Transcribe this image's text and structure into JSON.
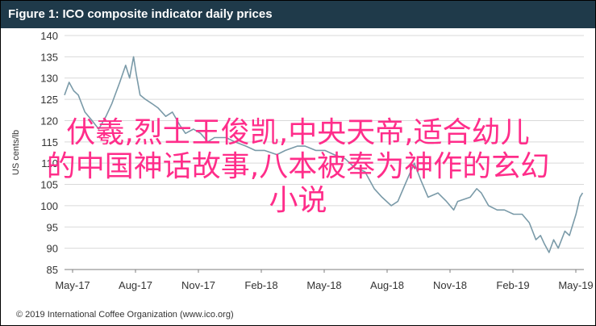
{
  "title": "Figure 1: ICO composite indicator daily prices",
  "footer": "© 2019 International Coffee Organization (www.ico.org)",
  "overlay_lines": [
    "伏羲,烈士王俊凯,中央天帝,适合幼儿",
    "的中国神话故事,八本被奉为神作的玄幻",
    "小说"
  ],
  "colors": {
    "title_bg": "#1f3a4a",
    "line": "#7a9aa8",
    "overlay": "#ff2d8a",
    "grid": "#d9d9d9"
  },
  "chart_data": {
    "type": "line",
    "title": "Figure 1: ICO composite indicator daily prices",
    "ylabel": "US cents/lb",
    "ylim": [
      85,
      140
    ],
    "yticks": [
      85,
      90,
      95,
      100,
      105,
      110,
      115,
      120,
      125,
      130,
      135,
      140
    ],
    "xlim": [
      "2017-05-01",
      "2019-06-30"
    ],
    "xticks": [
      "May-17",
      "Aug-17",
      "Nov-17",
      "Feb-18",
      "May-18",
      "Aug-18",
      "Nov-18",
      "Feb-19",
      "May-19"
    ],
    "grid": true,
    "series": [
      {
        "points": [
          [
            "2017-05-01",
            126
          ],
          [
            "2017-05-08",
            129
          ],
          [
            "2017-05-15",
            127
          ],
          [
            "2017-05-22",
            126
          ],
          [
            "2017-06-01",
            122
          ],
          [
            "2017-06-12",
            120
          ],
          [
            "2017-06-22",
            118
          ],
          [
            "2017-07-03",
            121
          ],
          [
            "2017-07-12",
            124
          ],
          [
            "2017-07-24",
            129
          ],
          [
            "2017-08-02",
            133
          ],
          [
            "2017-08-08",
            130
          ],
          [
            "2017-08-14",
            135
          ],
          [
            "2017-08-18",
            131
          ],
          [
            "2017-08-24",
            126
          ],
          [
            "2017-09-01",
            125
          ],
          [
            "2017-09-11",
            124
          ],
          [
            "2017-09-20",
            123
          ],
          [
            "2017-10-02",
            121
          ],
          [
            "2017-10-12",
            122
          ],
          [
            "2017-10-23",
            119
          ],
          [
            "2017-11-01",
            117
          ],
          [
            "2017-11-13",
            118
          ],
          [
            "2017-11-24",
            117
          ],
          [
            "2017-12-05",
            115
          ],
          [
            "2017-12-15",
            116
          ],
          [
            "2018-01-02",
            116
          ],
          [
            "2018-01-15",
            115
          ],
          [
            "2018-02-01",
            114
          ],
          [
            "2018-02-15",
            113
          ],
          [
            "2018-03-01",
            113
          ],
          [
            "2018-03-20",
            112
          ],
          [
            "2018-04-02",
            113
          ],
          [
            "2018-04-20",
            114
          ],
          [
            "2018-05-02",
            114
          ],
          [
            "2018-05-18",
            113
          ],
          [
            "2018-06-01",
            113
          ],
          [
            "2018-06-15",
            112
          ],
          [
            "2018-07-02",
            111
          ],
          [
            "2018-07-16",
            109
          ],
          [
            "2018-08-01",
            108
          ],
          [
            "2018-08-15",
            104
          ],
          [
            "2018-08-27",
            102
          ],
          [
            "2018-09-10",
            100
          ],
          [
            "2018-09-20",
            101
          ],
          [
            "2018-10-01",
            105
          ],
          [
            "2018-10-15",
            110
          ],
          [
            "2018-10-25",
            106
          ],
          [
            "2018-11-05",
            102
          ],
          [
            "2018-11-20",
            103
          ],
          [
            "2018-12-03",
            101
          ],
          [
            "2018-12-14",
            99
          ],
          [
            "2018-12-20",
            101
          ],
          [
            "2019-01-08",
            102
          ],
          [
            "2019-01-18",
            104
          ],
          [
            "2019-01-25",
            103
          ],
          [
            "2019-02-05",
            100
          ],
          [
            "2019-02-18",
            99
          ],
          [
            "2019-03-01",
            99
          ],
          [
            "2019-03-15",
            98
          ],
          [
            "2019-03-28",
            98
          ],
          [
            "2019-04-08",
            96
          ],
          [
            "2019-04-18",
            92
          ],
          [
            "2019-04-25",
            93
          ],
          [
            "2019-05-01",
            91
          ],
          [
            "2019-05-08",
            89
          ],
          [
            "2019-05-15",
            92
          ],
          [
            "2019-05-22",
            90
          ],
          [
            "2019-06-01",
            94
          ],
          [
            "2019-06-08",
            93
          ],
          [
            "2019-06-12",
            95
          ],
          [
            "2019-06-18",
            98
          ],
          [
            "2019-06-24",
            102
          ],
          [
            "2019-06-28",
            103
          ]
        ]
      }
    ]
  }
}
